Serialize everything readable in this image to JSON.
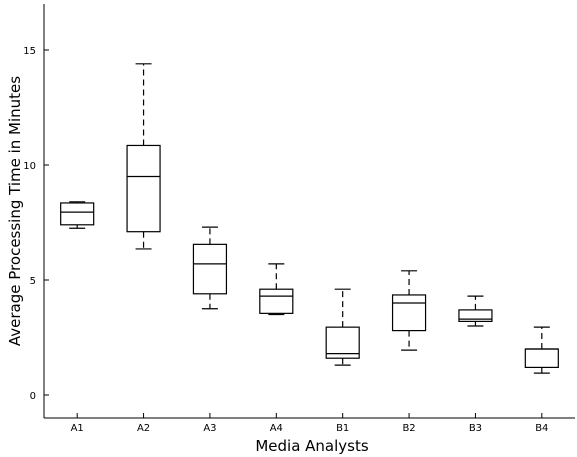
{
  "chart_data": {
    "type": "box",
    "title": "",
    "xlabel": "Media Analysts",
    "ylabel": "Average Processing Time in Minutes",
    "ylim": [
      -1,
      17
    ],
    "yticks": [
      0,
      5,
      10,
      15
    ],
    "categories": [
      "A1",
      "A2",
      "A3",
      "A4",
      "B1",
      "B2",
      "B3",
      "B4"
    ],
    "boxes": [
      {
        "category": "A1",
        "whisker_low": 7.25,
        "q1": 7.4,
        "median": 7.95,
        "q3": 8.35,
        "whisker_high": 8.4
      },
      {
        "category": "A2",
        "whisker_low": 6.35,
        "q1": 7.1,
        "median": 9.5,
        "q3": 10.85,
        "whisker_high": 14.4
      },
      {
        "category": "A3",
        "whisker_low": 3.75,
        "q1": 4.4,
        "median": 5.7,
        "q3": 6.55,
        "whisker_high": 7.3
      },
      {
        "category": "A4",
        "whisker_low": 3.5,
        "q1": 3.55,
        "median": 4.3,
        "q3": 4.6,
        "whisker_high": 5.7
      },
      {
        "category": "B1",
        "whisker_low": 1.3,
        "q1": 1.6,
        "median": 1.8,
        "q3": 2.95,
        "whisker_high": 4.6
      },
      {
        "category": "B2",
        "whisker_low": 1.95,
        "q1": 2.8,
        "median": 4.0,
        "q3": 4.35,
        "whisker_high": 5.4
      },
      {
        "category": "B3",
        "whisker_low": 3.0,
        "q1": 3.2,
        "median": 3.3,
        "q3": 3.7,
        "whisker_high": 4.3
      },
      {
        "category": "B4",
        "whisker_low": 0.95,
        "q1": 1.2,
        "median": 2.0,
        "q3": 2.0,
        "whisker_high": 2.95
      }
    ],
    "grid": false,
    "legend": "none"
  }
}
